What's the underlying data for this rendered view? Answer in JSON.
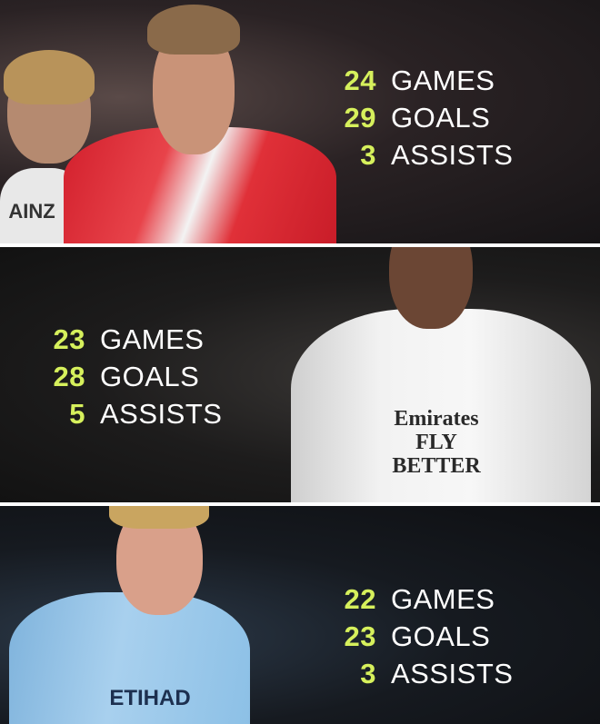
{
  "accent_color": "#d6f05c",
  "panels": [
    {
      "stats": [
        {
          "value": "24",
          "label": "GAMES"
        },
        {
          "value": "29",
          "label": "GOALS"
        },
        {
          "value": "3",
          "label": "ASSISTS"
        }
      ],
      "photo_text": "AINZ"
    },
    {
      "stats": [
        {
          "value": "23",
          "label": "GAMES"
        },
        {
          "value": "28",
          "label": "GOALS"
        },
        {
          "value": "5",
          "label": "ASSISTS"
        }
      ],
      "photo_text": "Emirates FLY BETTER"
    },
    {
      "stats": [
        {
          "value": "22",
          "label": "GAMES"
        },
        {
          "value": "23",
          "label": "GOALS"
        },
        {
          "value": "3",
          "label": "ASSISTS"
        }
      ],
      "photo_text": "ETIHAD"
    }
  ]
}
